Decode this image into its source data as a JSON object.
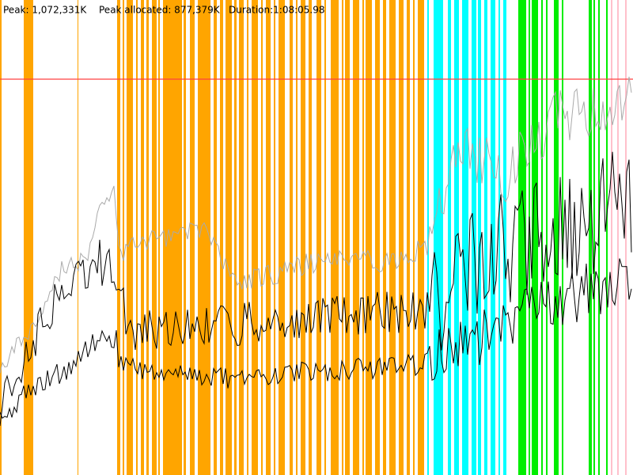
{
  "header": {
    "peak": "Peak: 1,072,331K",
    "peak_allocated": "Peak allocated: 877,379K",
    "duration": "Duration:1:08:05.98"
  }
}
